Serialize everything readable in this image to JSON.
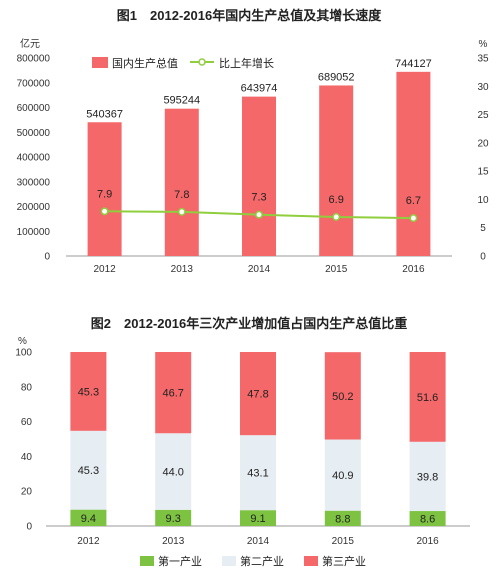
{
  "chart_data": [
    {
      "type": "bar",
      "title": "图1　2012-2016年国内生产总值及其增长速度",
      "categories": [
        "2012",
        "2013",
        "2014",
        "2015",
        "2016"
      ],
      "y_unit": "亿元",
      "y2_unit": "%",
      "ylim": [
        0,
        800000
      ],
      "y2lim": [
        0,
        35
      ],
      "yticks": [
        "0",
        "100000",
        "200000",
        "300000",
        "400000",
        "500000",
        "600000",
        "700000",
        "800000"
      ],
      "y2ticks": [
        "0",
        "5",
        "10",
        "15",
        "20",
        "25",
        "30",
        "35"
      ],
      "legend_placement": "top",
      "series": [
        {
          "name": "国内生产总值",
          "kind": "bar",
          "color": "#f4686a",
          "values": [
            540367,
            595244,
            643974,
            689052,
            744127
          ],
          "labels": [
            "540367",
            "595244",
            "643974",
            "689052",
            "744127"
          ]
        },
        {
          "name": "比上年增长",
          "kind": "line",
          "axis": "right",
          "color": "#8fce3c",
          "values": [
            7.9,
            7.8,
            7.3,
            6.9,
            6.7
          ],
          "labels": [
            "7.9",
            "7.8",
            "7.3",
            "6.9",
            "6.7"
          ]
        }
      ],
      "grid": false
    },
    {
      "type": "bar",
      "stacked": true,
      "title": "图2　2012-2016年三次产业增加值占国内生产总值比重",
      "categories": [
        "2012",
        "2013",
        "2014",
        "2015",
        "2016"
      ],
      "y_unit": "%",
      "ylim": [
        0,
        100
      ],
      "yticks": [
        "0",
        "20",
        "40",
        "60",
        "80",
        "100"
      ],
      "legend_placement": "bottom",
      "series": [
        {
          "name": "第一产业",
          "color": "#7dc341",
          "values": [
            9.4,
            9.3,
            9.1,
            8.8,
            8.6
          ],
          "labels": [
            "9.4",
            "9.3",
            "9.1",
            "8.8",
            "8.6"
          ]
        },
        {
          "name": "第二产业",
          "color": "#e6edf3",
          "values": [
            45.3,
            44.0,
            43.1,
            40.9,
            39.8
          ],
          "labels": [
            "45.3",
            "44.0",
            "43.1",
            "40.9",
            "39.8"
          ]
        },
        {
          "name": "第三产业",
          "color": "#f4686a",
          "values": [
            45.3,
            46.7,
            47.8,
            50.2,
            51.6
          ],
          "labels": [
            "45.3",
            "46.7",
            "47.8",
            "50.2",
            "51.6"
          ]
        }
      ],
      "grid": false
    }
  ]
}
